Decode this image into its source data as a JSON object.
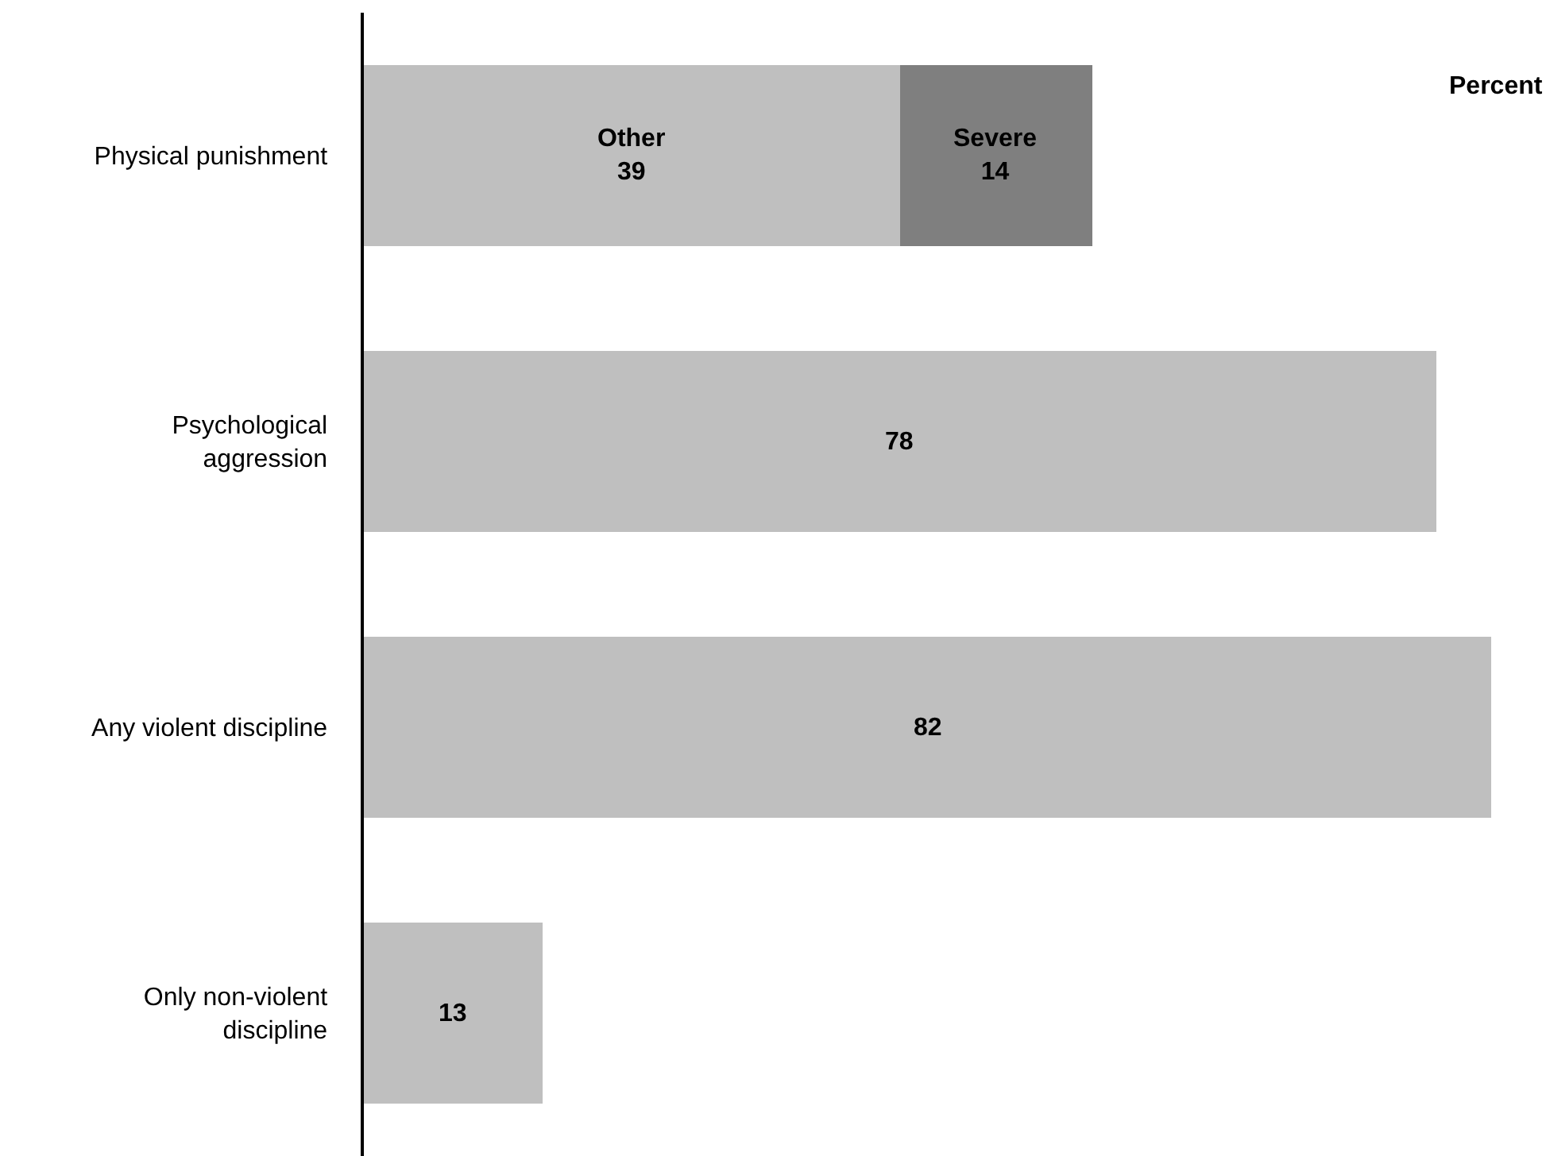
{
  "chart_data": {
    "type": "bar",
    "orientation": "horizontal",
    "stacked": true,
    "categories": [
      "Physical punishment",
      "Psychological aggression",
      "Any violent discipline",
      "Only non-violent discipline"
    ],
    "series": [
      {
        "name": "Other",
        "color": "#bfbfbf",
        "values": [
          39,
          78,
          82,
          13
        ]
      },
      {
        "name": "Severe",
        "color": "#7f7f7f",
        "values": [
          14,
          null,
          null,
          null
        ]
      }
    ],
    "data_labels": true,
    "xlim": [
      0,
      86
    ],
    "tick_labels": "y",
    "annotations": [
      "Percent"
    ]
  }
}
